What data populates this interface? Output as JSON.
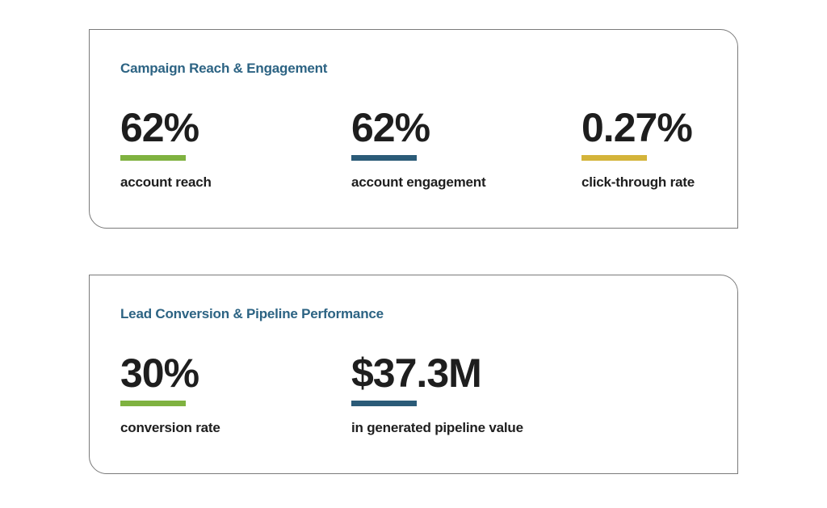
{
  "colors": {
    "title": "#2c6383",
    "text": "#1e1e1e",
    "green": "#7fb240",
    "blue": "#2b5b78",
    "gold": "#d4b43a",
    "border": "#7a7a7a"
  },
  "cards": [
    {
      "title": "Campaign Reach & Engagement",
      "metrics": [
        {
          "value": "62%",
          "label": "account reach",
          "accent": "green"
        },
        {
          "value": "62%",
          "label": "account engagement",
          "accent": "blue"
        },
        {
          "value": "0.27%",
          "label": "click-through rate",
          "accent": "gold"
        }
      ]
    },
    {
      "title": "Lead Conversion & Pipeline Performance",
      "metrics": [
        {
          "value": "30%",
          "label": "conversion rate",
          "accent": "green"
        },
        {
          "value": "$37.3M",
          "label": "in generated pipeline value",
          "accent": "blue"
        }
      ]
    }
  ]
}
